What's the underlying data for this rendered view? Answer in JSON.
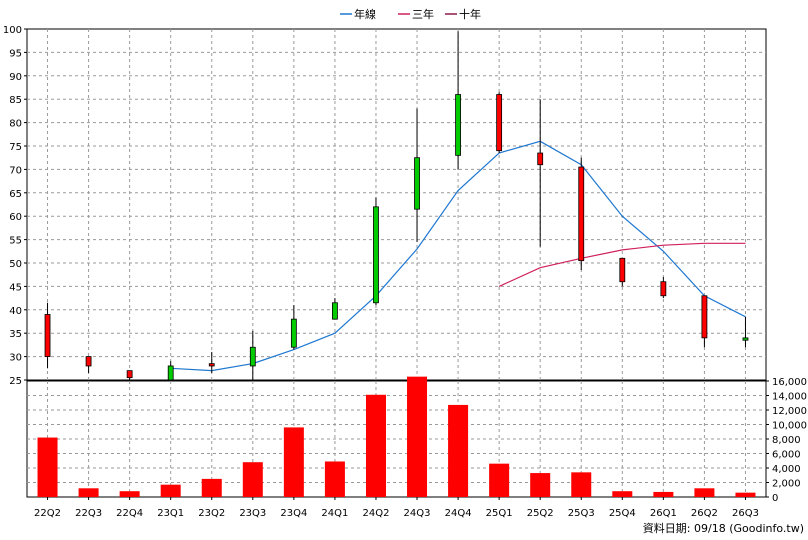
{
  "chart_data": {
    "type": "candlestick",
    "legend": {
      "placement": "top-center",
      "items": [
        {
          "name": "年線",
          "color": "#1f78d1"
        },
        {
          "name": "三年",
          "color": "#d0205a"
        },
        {
          "name": "十年",
          "color": "#8a1a4a"
        }
      ]
    },
    "categories": [
      "22Q2",
      "22Q3",
      "22Q4",
      "23Q1",
      "23Q2",
      "23Q3",
      "23Q4",
      "24Q1",
      "24Q2",
      "24Q3",
      "24Q4",
      "25Q1",
      "25Q2",
      "25Q3",
      "25Q4",
      "26Q1",
      "26Q2",
      "26Q3"
    ],
    "price": {
      "ylim": [
        25,
        100
      ],
      "ticks": [
        25,
        30,
        35,
        40,
        45,
        50,
        55,
        60,
        65,
        70,
        75,
        80,
        85,
        90,
        95,
        100
      ],
      "candles": [
        {
          "o": 30.0,
          "h": 41.5,
          "l": 27.5,
          "c": 39.0
        },
        {
          "o": 28.0,
          "h": 30.0,
          "l": 26.5,
          "c": 30.0
        },
        {
          "o": 25.5,
          "h": 27.0,
          "l": 24.5,
          "c": 27.0
        },
        {
          "o": 28.0,
          "h": 29.0,
          "l": 24.0,
          "c": 25.0
        },
        {
          "o": 28.0,
          "h": 31.0,
          "l": 26.5,
          "c": 28.5
        },
        {
          "o": 32.0,
          "h": 35.5,
          "l": 25.0,
          "c": 28.0
        },
        {
          "o": 38.0,
          "h": 41.0,
          "l": 31.5,
          "c": 32.0
        },
        {
          "o": 41.5,
          "h": 42.5,
          "l": 38.0,
          "c": 38.0
        },
        {
          "o": 62.0,
          "h": 64.0,
          "l": 41.0,
          "c": 41.5
        },
        {
          "o": 72.5,
          "h": 83.0,
          "l": 54.5,
          "c": 61.5
        },
        {
          "o": 86.0,
          "h": 99.5,
          "l": 70.0,
          "c": 73.0
        },
        {
          "o": 74.0,
          "h": 86.5,
          "l": 73.5,
          "c": 86.0
        },
        {
          "o": 71.0,
          "h": 85.0,
          "l": 53.5,
          "c": 73.5
        },
        {
          "o": 50.5,
          "h": 72.5,
          "l": 48.5,
          "c": 70.5
        },
        {
          "o": 46.0,
          "h": 51.0,
          "l": 45.0,
          "c": 51.0
        },
        {
          "o": 43.0,
          "h": 47.0,
          "l": 42.5,
          "c": 46.0
        },
        {
          "o": 34.0,
          "h": 43.0,
          "l": 32.0,
          "c": 43.0
        },
        {
          "o": 34.0,
          "h": 38.5,
          "l": 32.0,
          "c": 33.5
        }
      ],
      "series": [
        {
          "name": "年線",
          "color": "#1f78d1",
          "start_index": 3,
          "values": [
            27.5,
            27.0,
            28.5,
            31.5,
            35.0,
            43.0,
            53.0,
            65.5,
            73.5,
            76.0,
            71.0,
            60.0,
            52.5,
            43.0,
            38.5
          ]
        },
        {
          "name": "三年",
          "color": "#d0205a",
          "start_index": 11,
          "values": [
            45.0,
            49.0,
            51.0,
            52.8,
            53.8,
            54.2,
            54.2
          ]
        }
      ]
    },
    "volume": {
      "ylim": [
        0,
        16000
      ],
      "ticks": [
        0,
        2000,
        4000,
        6000,
        8000,
        10000,
        12000,
        14000,
        16000
      ],
      "tick_labels": [
        "0",
        "2,000",
        "4,000",
        "6,000",
        "8,000",
        "10,000",
        "12,000",
        "14,000",
        "16,000"
      ],
      "values": [
        8200,
        1200,
        800,
        1700,
        2500,
        4800,
        9600,
        4900,
        14100,
        16600,
        12700,
        4600,
        3300,
        3400,
        800,
        700,
        1200,
        600
      ]
    },
    "grid": true
  },
  "footer": {
    "text": "資料日期: 09/18 (Goodinfo.tw)"
  }
}
